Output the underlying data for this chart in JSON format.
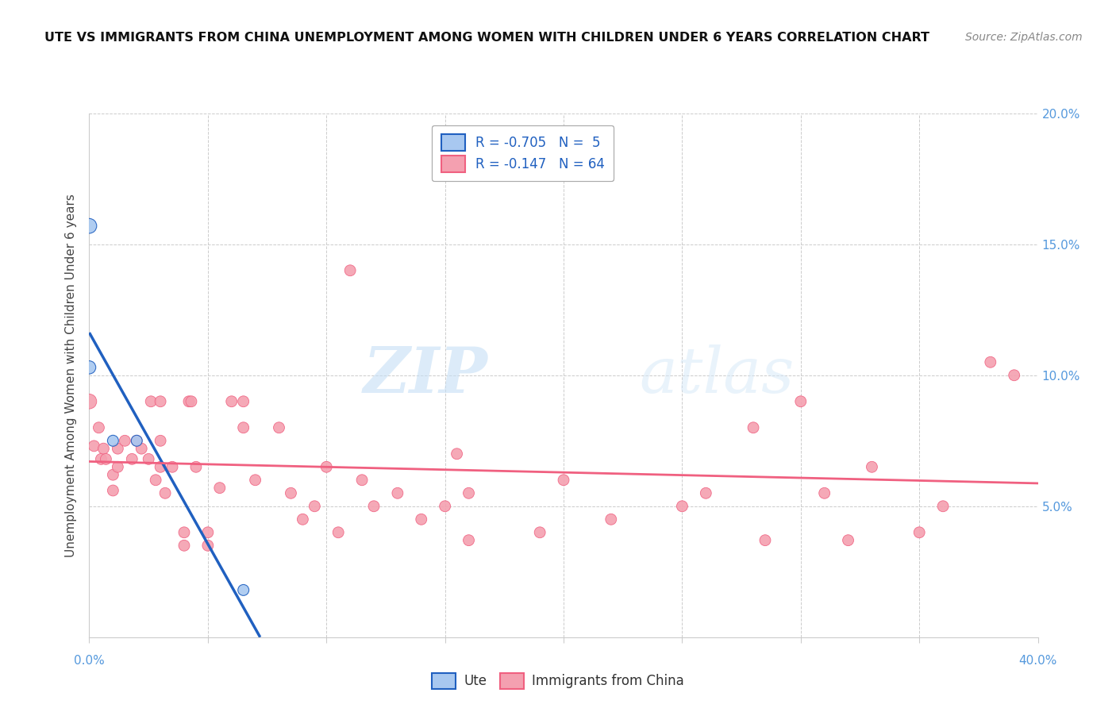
{
  "title": "UTE VS IMMIGRANTS FROM CHINA UNEMPLOYMENT AMONG WOMEN WITH CHILDREN UNDER 6 YEARS CORRELATION CHART",
  "source_text": "Source: ZipAtlas.com",
  "ylabel": "Unemployment Among Women with Children Under 6 years",
  "xlim": [
    0.0,
    0.4
  ],
  "ylim": [
    0.0,
    0.2
  ],
  "legend_r1": "R = -0.705",
  "legend_n1": "N =  5",
  "legend_r2": "R = -0.147",
  "legend_n2": "N = 64",
  "ute_color": "#a8c8f0",
  "china_color": "#f4a0b0",
  "ute_line_color": "#2060c0",
  "china_line_color": "#f06080",
  "ute_points": [
    [
      0.0,
      0.157
    ],
    [
      0.0,
      0.103
    ],
    [
      0.01,
      0.075
    ],
    [
      0.02,
      0.075
    ],
    [
      0.065,
      0.018
    ]
  ],
  "ute_sizes": [
    180,
    140,
    100,
    100,
    100
  ],
  "china_points": [
    [
      0.0,
      0.09
    ],
    [
      0.002,
      0.073
    ],
    [
      0.004,
      0.08
    ],
    [
      0.005,
      0.068
    ],
    [
      0.006,
      0.072
    ],
    [
      0.007,
      0.068
    ],
    [
      0.01,
      0.062
    ],
    [
      0.01,
      0.056
    ],
    [
      0.012,
      0.072
    ],
    [
      0.012,
      0.065
    ],
    [
      0.015,
      0.075
    ],
    [
      0.018,
      0.068
    ],
    [
      0.02,
      0.075
    ],
    [
      0.022,
      0.072
    ],
    [
      0.025,
      0.068
    ],
    [
      0.026,
      0.09
    ],
    [
      0.028,
      0.06
    ],
    [
      0.03,
      0.065
    ],
    [
      0.03,
      0.09
    ],
    [
      0.03,
      0.075
    ],
    [
      0.032,
      0.055
    ],
    [
      0.035,
      0.065
    ],
    [
      0.04,
      0.04
    ],
    [
      0.04,
      0.035
    ],
    [
      0.042,
      0.09
    ],
    [
      0.043,
      0.09
    ],
    [
      0.045,
      0.065
    ],
    [
      0.05,
      0.04
    ],
    [
      0.05,
      0.035
    ],
    [
      0.055,
      0.057
    ],
    [
      0.06,
      0.09
    ],
    [
      0.065,
      0.09
    ],
    [
      0.065,
      0.08
    ],
    [
      0.07,
      0.06
    ],
    [
      0.08,
      0.08
    ],
    [
      0.085,
      0.055
    ],
    [
      0.09,
      0.045
    ],
    [
      0.095,
      0.05
    ],
    [
      0.1,
      0.065
    ],
    [
      0.105,
      0.04
    ],
    [
      0.11,
      0.14
    ],
    [
      0.115,
      0.06
    ],
    [
      0.12,
      0.05
    ],
    [
      0.13,
      0.055
    ],
    [
      0.14,
      0.045
    ],
    [
      0.15,
      0.05
    ],
    [
      0.155,
      0.07
    ],
    [
      0.16,
      0.037
    ],
    [
      0.16,
      0.055
    ],
    [
      0.19,
      0.04
    ],
    [
      0.2,
      0.06
    ],
    [
      0.22,
      0.045
    ],
    [
      0.25,
      0.05
    ],
    [
      0.26,
      0.055
    ],
    [
      0.28,
      0.08
    ],
    [
      0.285,
      0.037
    ],
    [
      0.3,
      0.09
    ],
    [
      0.31,
      0.055
    ],
    [
      0.32,
      0.037
    ],
    [
      0.33,
      0.065
    ],
    [
      0.35,
      0.04
    ],
    [
      0.36,
      0.05
    ],
    [
      0.38,
      0.105
    ],
    [
      0.39,
      0.1
    ]
  ],
  "china_sizes": [
    180,
    100,
    100,
    100,
    100,
    100,
    100,
    100,
    100,
    100,
    100,
    100,
    100,
    100,
    100,
    100,
    100,
    100,
    100,
    100,
    100,
    100,
    100,
    100,
    100,
    100,
    100,
    100,
    100,
    100,
    100,
    100,
    100,
    100,
    100,
    100,
    100,
    100,
    100,
    100,
    100,
    100,
    100,
    100,
    100,
    100,
    100,
    100,
    100,
    100,
    100,
    100,
    100,
    100,
    100,
    100,
    100,
    100,
    100,
    100,
    100,
    100,
    100,
    100
  ],
  "watermark_zip": "ZIP",
  "watermark_atlas": "atlas",
  "bg_color": "#ffffff",
  "grid_color": "#cccccc",
  "tick_color": "#5599dd",
  "label_fontsize": 11,
  "title_fontsize": 11.5
}
